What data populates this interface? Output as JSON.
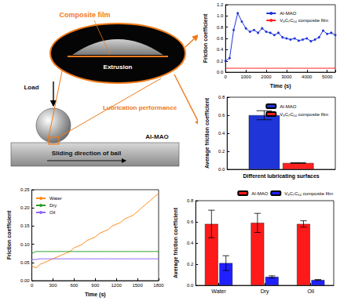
{
  "schematic": {
    "load": "Load",
    "composite_film": "Composite film",
    "extrusion": "Extrusion",
    "lubrication": "Lubrication performance",
    "substrate": "Al-MAO",
    "sliding": "Sliding direction of ball"
  },
  "chart_data": [
    {
      "type": "line",
      "xlabel": "Time (s)",
      "ylabel": "Friction coefficient",
      "x": [
        0,
        200,
        400,
        600,
        800,
        1000,
        1200,
        1400,
        1600,
        1800,
        2000,
        2200,
        2400,
        2600,
        2800,
        3000,
        3200,
        3400,
        3600,
        3800,
        4000,
        4200,
        4400,
        4600,
        4800,
        5000,
        5200,
        5400
      ],
      "series": [
        {
          "name": "Al-MAO",
          "color": "#1f35d8",
          "marker": "circle",
          "values": [
            0.2,
            0.25,
            0.75,
            1.05,
            0.9,
            0.78,
            0.72,
            0.75,
            0.7,
            0.78,
            0.72,
            0.7,
            0.66,
            0.7,
            0.62,
            0.6,
            0.58,
            0.6,
            0.56,
            0.58,
            0.6,
            0.55,
            0.58,
            0.62,
            0.74,
            0.68,
            0.7,
            0.66
          ]
        },
        {
          "name": "V₈C₇C₁₄ composite film",
          "color": "#ff2020",
          "values": [
            0.07,
            0.07,
            0.07,
            0.07,
            0.07,
            0.07,
            0.07,
            0.07,
            0.07,
            0.07,
            0.07,
            0.07,
            0.07,
            0.07,
            0.07,
            0.07,
            0.07,
            0.07,
            0.07,
            0.07,
            0.07,
            0.07,
            0.07,
            0.07,
            0.07,
            0.07,
            0.07,
            0.07
          ]
        }
      ],
      "xlim": [
        0,
        5400
      ],
      "xticks": [
        0,
        1000,
        2000,
        3000,
        4000,
        5000
      ],
      "ylim": [
        0,
        1.2
      ],
      "yticks": [
        {
          "value": 0,
          "label": "0.0"
        },
        0.2,
        0.4,
        0.6,
        0.8,
        {
          "value": 1,
          "label": "1.0"
        },
        1.2
      ],
      "grid": false,
      "legend": "upper right"
    },
    {
      "type": "bar",
      "xlabel": "Different lubricating surfaces",
      "ylabel": "Average friction coefficient",
      "categories": [
        null
      ],
      "series": [
        {
          "name": "Al-MAO",
          "color": "#1f35d8",
          "values": [
            0.6
          ],
          "errors": [
            0.05
          ]
        },
        {
          "name": "V₈C₇C₁₄ composite film",
          "color": "#ff2020",
          "values": [
            0.07
          ],
          "errors": [
            0.005
          ]
        }
      ],
      "ylim": [
        0,
        0.8
      ],
      "yticks": [
        {
          "value": 0,
          "label": "0.0"
        },
        0.2,
        0.4,
        0.6,
        0.8
      ],
      "grid": false,
      "legend": "upper right",
      "tick_labels": "y"
    },
    {
      "type": "line",
      "xlabel": "Time (s)",
      "ylabel": "Friction coefficient",
      "x": [
        0,
        60,
        120,
        180,
        240,
        300,
        360,
        420,
        480,
        540,
        600,
        660,
        720,
        780,
        840,
        900,
        960,
        1020,
        1080,
        1140,
        1200,
        1260,
        1320,
        1380,
        1440,
        1500,
        1560,
        1620,
        1680,
        1740,
        1800
      ],
      "series": [
        {
          "name": "Water",
          "color": "#ff8c1a",
          "values": [
            0.04,
            0.035,
            0.045,
            0.05,
            0.055,
            0.06,
            0.065,
            0.07,
            0.075,
            0.08,
            0.09,
            0.095,
            0.1,
            0.11,
            0.115,
            0.12,
            0.13,
            0.135,
            0.14,
            0.15,
            0.155,
            0.16,
            0.17,
            0.175,
            0.18,
            0.19,
            0.2,
            0.21,
            0.22,
            0.23,
            0.24
          ]
        },
        {
          "name": "Dry",
          "color": "#2ca02c",
          "values": [
            0.075,
            0.08,
            0.08,
            0.08,
            0.08,
            0.08,
            0.08,
            0.08,
            0.08,
            0.08,
            0.08,
            0.08,
            0.08,
            0.08,
            0.08,
            0.08,
            0.08,
            0.08,
            0.08,
            0.08,
            0.08,
            0.08,
            0.08,
            0.08,
            0.08,
            0.08,
            0.08,
            0.08,
            0.08,
            0.08,
            0.08
          ]
        },
        {
          "name": "Oil",
          "color": "#9467f5",
          "values": [
            0.058,
            0.058,
            0.06,
            0.06,
            0.06,
            0.06,
            0.06,
            0.06,
            0.06,
            0.06,
            0.06,
            0.06,
            0.06,
            0.06,
            0.06,
            0.06,
            0.06,
            0.06,
            0.06,
            0.06,
            0.06,
            0.06,
            0.06,
            0.06,
            0.06,
            0.06,
            0.06,
            0.06,
            0.06,
            0.06,
            0.06
          ]
        }
      ],
      "xlim": [
        0,
        1800
      ],
      "xticks": [
        0,
        300,
        600,
        900,
        1200,
        1500,
        1800
      ],
      "ylim": [
        0,
        0.25
      ],
      "yticks": [
        {
          "value": 0,
          "label": "0.00"
        },
        {
          "value": 0.05,
          "label": "0.05"
        },
        {
          "value": 0.1,
          "label": "0.10"
        },
        {
          "value": 0.15,
          "label": "0.15"
        },
        {
          "value": 0.2,
          "label": "0.20"
        },
        {
          "value": 0.25,
          "label": "0.25"
        }
      ],
      "grid": false,
      "legend": "upper left"
    },
    {
      "type": "bar",
      "ylabel": "Average friction coefficient",
      "categories": [
        "Water",
        "Dry",
        "Oil"
      ],
      "series": [
        {
          "name": "Al-MAO",
          "color": "#ff1a1a",
          "values": [
            0.58,
            0.59,
            0.58
          ],
          "errors": [
            0.13,
            0.09,
            0.03
          ]
        },
        {
          "name": "V₈C₇C₁₄ composite film",
          "color": "#2020ff",
          "values": [
            0.21,
            0.08,
            0.05
          ],
          "errors": [
            0.07,
            0.01,
            0.005
          ]
        }
      ],
      "ylim": [
        0,
        0.8
      ],
      "yticks": [
        {
          "value": 0,
          "label": "0.0"
        },
        0.2,
        0.4,
        0.6,
        0.8
      ],
      "grid": false,
      "legend": "upper right"
    }
  ]
}
